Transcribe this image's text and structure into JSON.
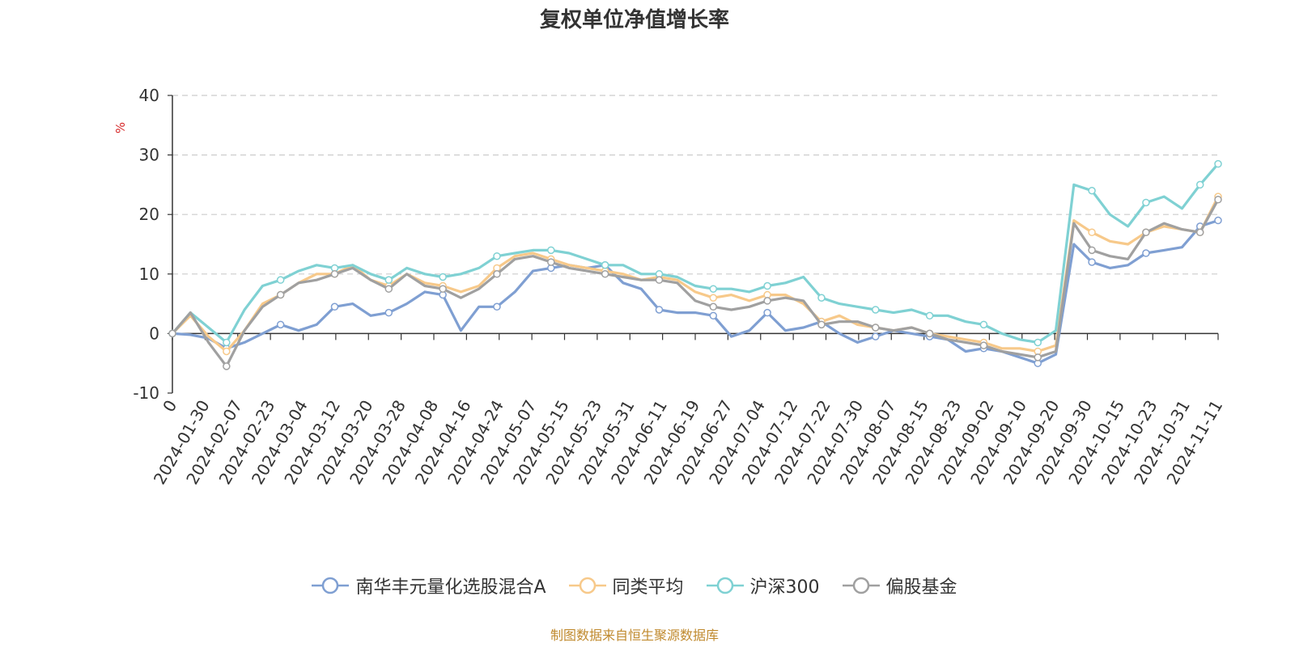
{
  "title": "复权单位净值增长率",
  "source": "制图数据来自恒生聚源数据库",
  "colors": {
    "source": "#c08a2e",
    "unit": "#d62728",
    "axis": "#333333",
    "grid": "#cccccc"
  },
  "chart_data": {
    "type": "line",
    "ylabel": "%",
    "ylim": [
      -10,
      40
    ],
    "yticks": [
      -10,
      0,
      10,
      20,
      30,
      40
    ],
    "grid": "horizontal dashed",
    "legend": "bottom-center",
    "xticks": [
      "0",
      "2024-01-30",
      "2024-02-07",
      "2024-02-23",
      "2024-03-04",
      "2024-03-12",
      "2024-03-20",
      "2024-03-28",
      "2024-04-08",
      "2024-04-16",
      "2024-04-24",
      "2024-05-07",
      "2024-05-15",
      "2024-05-23",
      "2024-05-31",
      "2024-06-11",
      "2024-06-19",
      "2024-06-27",
      "2024-07-04",
      "2024-07-12",
      "2024-07-22",
      "2024-07-30",
      "2024-08-07",
      "2024-08-15",
      "2024-08-23",
      "2024-09-02",
      "2024-09-10",
      "2024-09-20",
      "2024-09-30",
      "2024-10-15",
      "2024-10-23",
      "2024-10-31",
      "2024-11-11"
    ],
    "series": [
      {
        "name": "南华丰元量化选股混合A",
        "color": "#7f9fd2",
        "values": [
          0,
          -0.2,
          -0.8,
          -2.5,
          -1.5,
          0,
          1.5,
          0.5,
          1.5,
          4.5,
          5,
          3,
          3.5,
          5,
          7,
          6.5,
          0.5,
          4.5,
          4.5,
          7,
          10.5,
          11,
          11.5,
          11,
          11.5,
          8.5,
          7.5,
          4,
          3.5,
          3.5,
          3,
          -0.5,
          0.5,
          3.5,
          0.5,
          1,
          2,
          0,
          -1.5,
          -0.5,
          0.5,
          0,
          -0.5,
          -1,
          -3,
          -2.5,
          -3,
          -4,
          -5,
          -3.5,
          15,
          12,
          11,
          11.5,
          13.5,
          14,
          14.5,
          18,
          19
        ]
      },
      {
        "name": "同类平均",
        "color": "#f7c98a",
        "values": [
          0,
          3,
          -0.5,
          -3,
          0.5,
          5,
          6.5,
          8.5,
          10,
          10,
          11.5,
          9,
          8,
          10,
          8.5,
          8,
          7,
          8,
          11,
          13,
          13.5,
          12.5,
          11.5,
          11,
          10.5,
          10,
          9,
          9.5,
          9,
          7,
          6,
          6.5,
          5.5,
          6.5,
          6.5,
          5,
          2,
          3,
          1.5,
          1,
          0.5,
          1,
          0,
          -0.5,
          -1,
          -1.5,
          -2.5,
          -2.5,
          -3,
          -2,
          19,
          17,
          15.5,
          15,
          17,
          18,
          17.5,
          17,
          23
        ]
      },
      {
        "name": "沪深300",
        "color": "#7fd1d3",
        "values": [
          0,
          3.5,
          1,
          -1.5,
          4,
          8,
          9,
          10.5,
          11.5,
          11,
          11.5,
          10,
          9,
          11,
          10,
          9.5,
          10,
          11,
          13,
          13.5,
          14,
          14,
          13.5,
          12.5,
          11.5,
          11.5,
          10,
          10,
          9.5,
          8,
          7.5,
          7.5,
          7,
          8,
          8.5,
          9.5,
          6,
          5,
          4.5,
          4,
          3.5,
          4,
          3,
          3,
          2,
          1.5,
          0,
          -1,
          -1.5,
          0.5,
          25,
          24,
          20,
          18,
          22,
          23,
          21,
          25,
          28.5
        ]
      },
      {
        "name": "偏股基金",
        "color": "#a0a0a0",
        "values": [
          0,
          3.5,
          -1.5,
          -5.5,
          0.5,
          4.5,
          6.5,
          8.5,
          9,
          10,
          11,
          9,
          7.5,
          10,
          8,
          7.5,
          6,
          7.5,
          10,
          12.5,
          13,
          12,
          11,
          10.5,
          10,
          9.5,
          9,
          9,
          8.5,
          5.5,
          4.5,
          4,
          4.5,
          5.5,
          6,
          5.5,
          1.5,
          2,
          2,
          1,
          0.5,
          1,
          0,
          -1,
          -1.5,
          -2,
          -3,
          -3.5,
          -4,
          -3,
          18.5,
          14,
          13,
          12.5,
          17,
          18.5,
          17.5,
          17,
          22.5
        ]
      }
    ]
  }
}
